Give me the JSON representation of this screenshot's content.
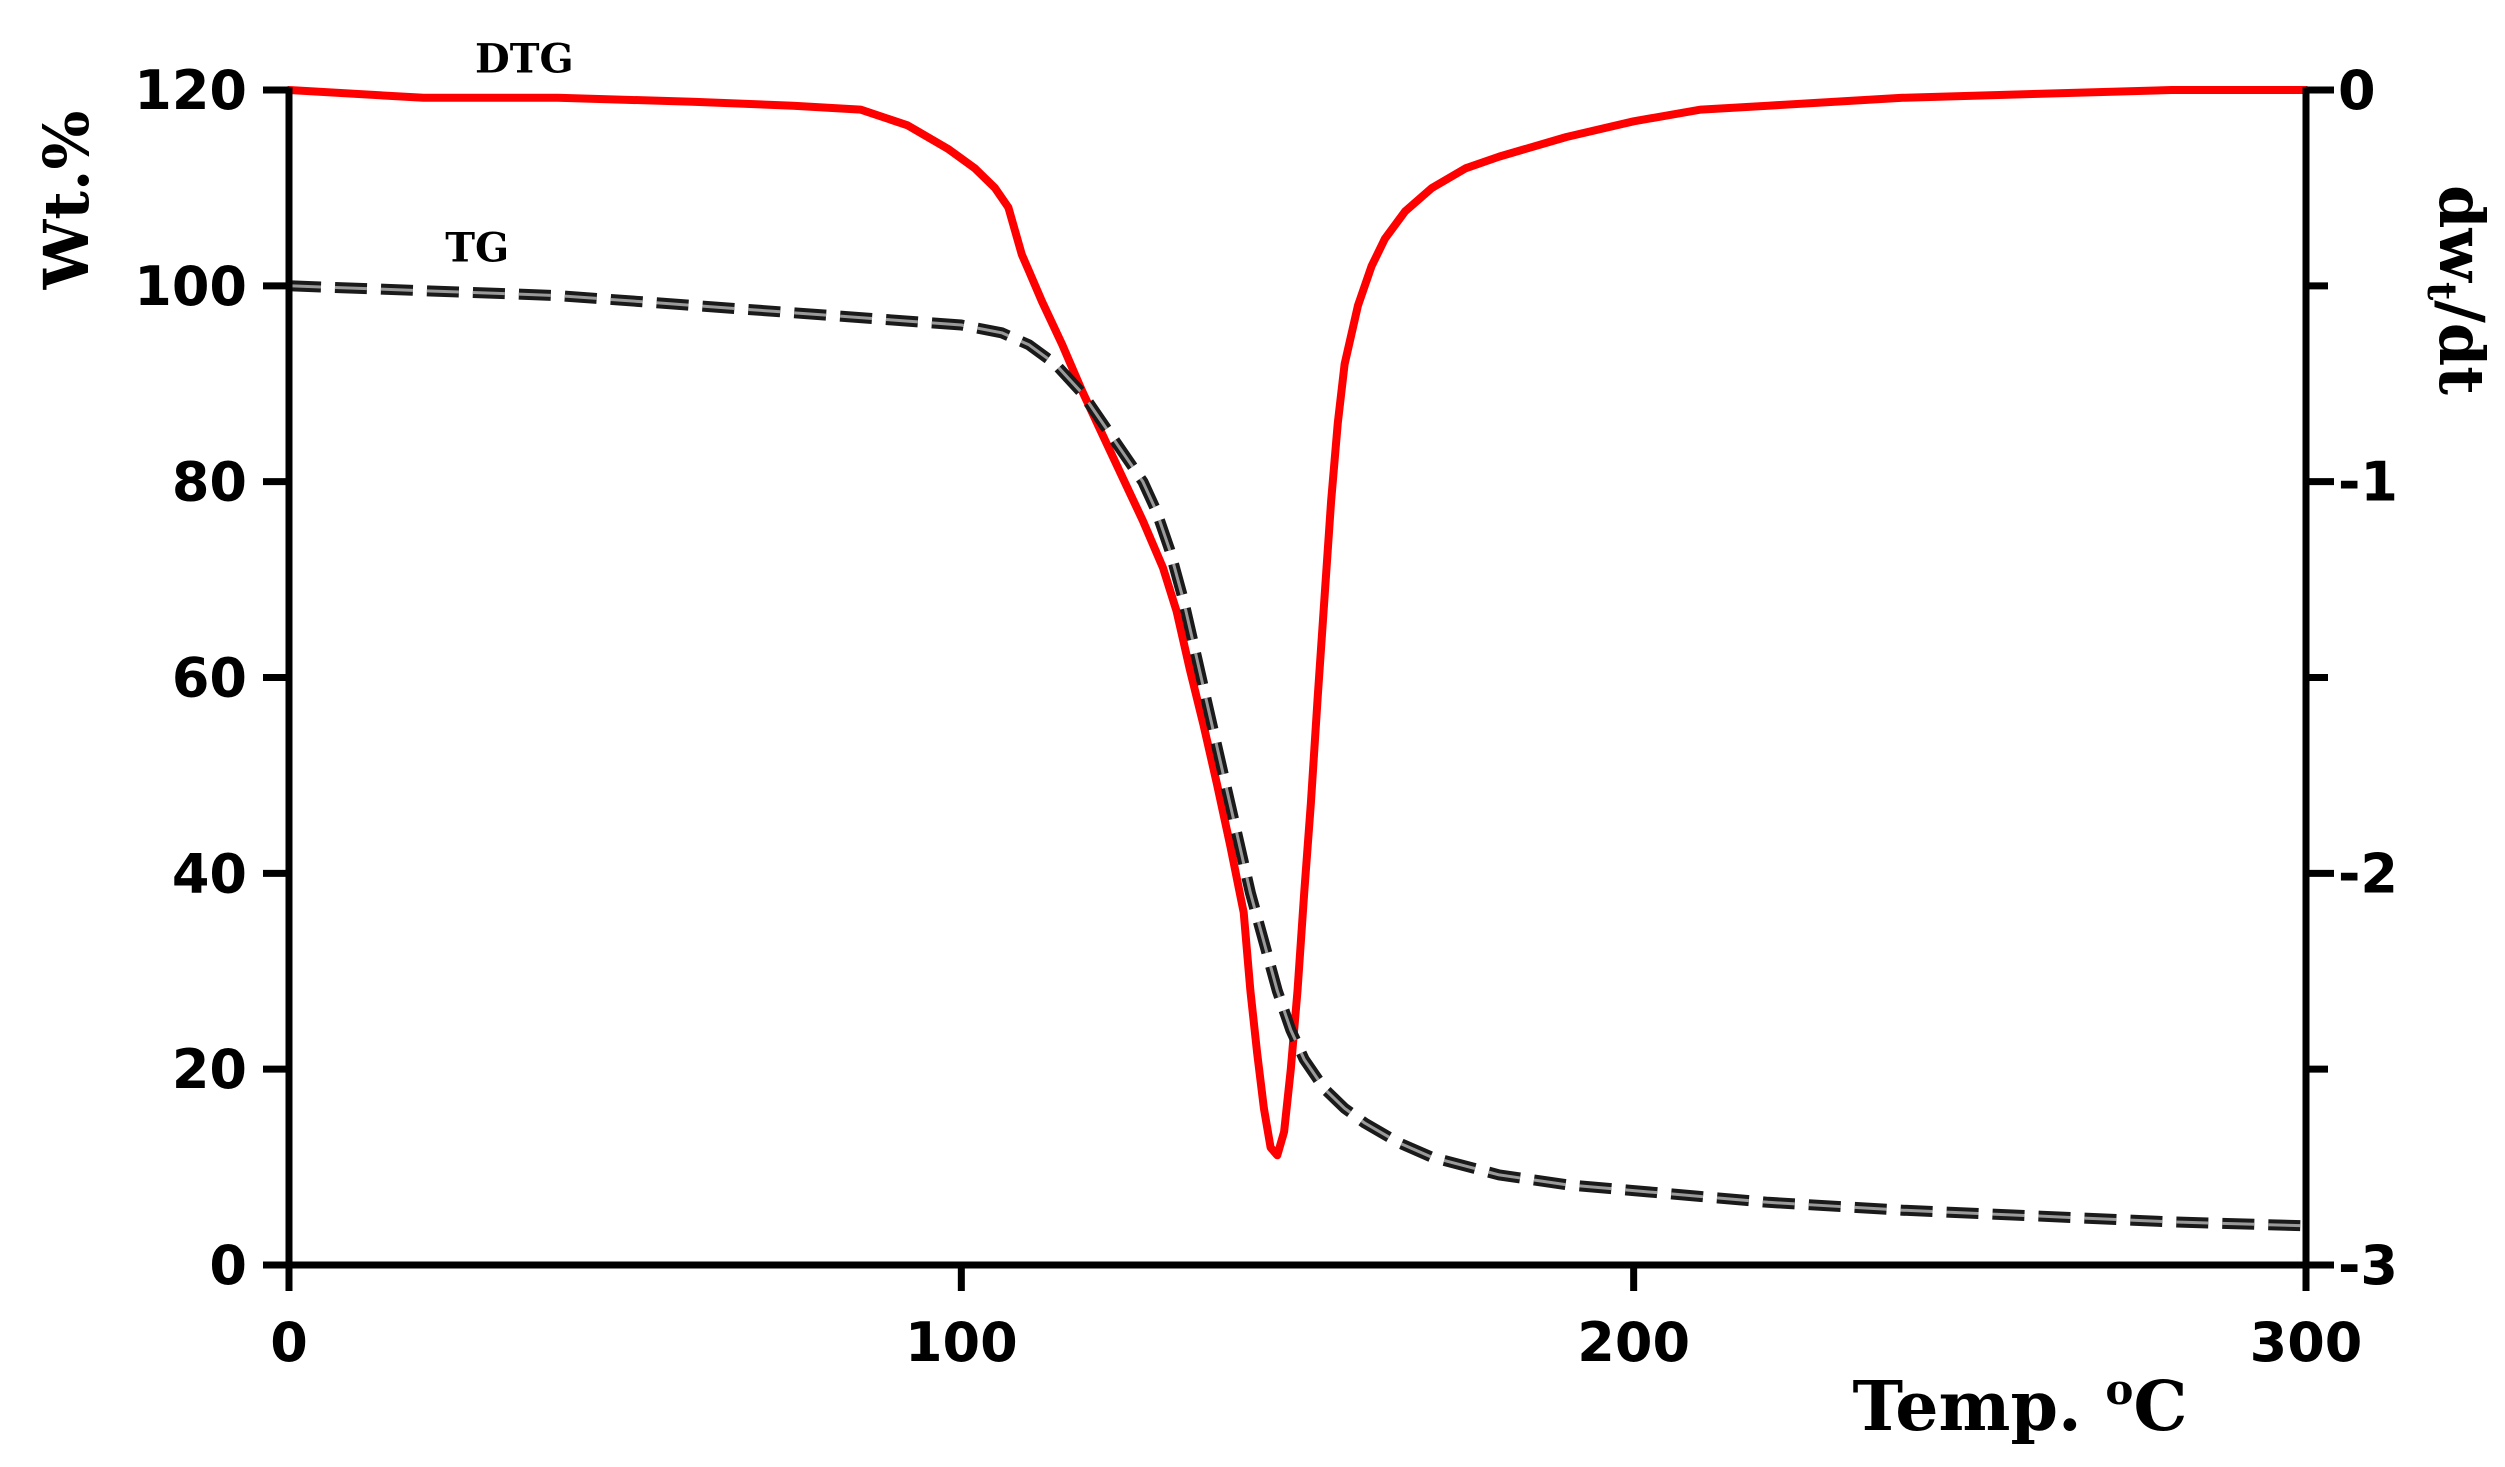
{
  "chart_data": {
    "type": "line",
    "title": "",
    "xlabel": "Temp. ",
    "xlabel_unit_sup": "o",
    "xlabel_unit": "C",
    "ylabel": "Wt.%",
    "y2label_main": "dw",
    "y2label_sub": "t",
    "y2label_end": "/dt",
    "xlim": [
      0,
      300
    ],
    "ylim": [
      0,
      120
    ],
    "y2lim": [
      -3,
      0
    ],
    "x_ticks": [
      "0",
      "100",
      "200",
      "300"
    ],
    "y_ticks": [
      "0",
      "20",
      "40",
      "60",
      "80",
      "100",
      "120"
    ],
    "y2_ticks": [
      "-3",
      "-2",
      "-1",
      "0"
    ],
    "grid": false,
    "colors": {
      "dtg": "#ff0000",
      "tg": "#1a1a1a",
      "tg_highlight": "#9a9a9a",
      "axis": "#000000"
    },
    "series": [
      {
        "name": "DTG",
        "axis": "right",
        "style": "solid",
        "label_at": [
          35,
          0.045
        ],
        "points": [
          [
            0,
            0.0
          ],
          [
            20,
            -0.02
          ],
          [
            40,
            -0.02
          ],
          [
            60,
            -0.03
          ],
          [
            75,
            -0.04
          ],
          [
            85,
            -0.05
          ],
          [
            92,
            -0.09
          ],
          [
            98,
            -0.15
          ],
          [
            102,
            -0.2
          ],
          [
            105,
            -0.25
          ],
          [
            107,
            -0.3
          ],
          [
            108,
            -0.36
          ],
          [
            109,
            -0.42
          ],
          [
            110,
            -0.46
          ],
          [
            112,
            -0.54
          ],
          [
            115,
            -0.65
          ],
          [
            118,
            -0.77
          ],
          [
            121,
            -0.88
          ],
          [
            124,
            -0.99
          ],
          [
            127,
            -1.1
          ],
          [
            130,
            -1.22
          ],
          [
            132,
            -1.33
          ],
          [
            134,
            -1.48
          ],
          [
            136,
            -1.62
          ],
          [
            138,
            -1.77
          ],
          [
            140,
            -1.93
          ],
          [
            142,
            -2.1
          ],
          [
            143,
            -2.3
          ],
          [
            144,
            -2.46
          ],
          [
            145,
            -2.6
          ],
          [
            146,
            -2.7
          ],
          [
            147,
            -2.72
          ],
          [
            148,
            -2.66
          ],
          [
            149,
            -2.5
          ],
          [
            150,
            -2.3
          ],
          [
            151,
            -2.05
          ],
          [
            152,
            -1.82
          ],
          [
            153,
            -1.55
          ],
          [
            154,
            -1.3
          ],
          [
            155,
            -1.05
          ],
          [
            156,
            -0.85
          ],
          [
            157,
            -0.7
          ],
          [
            159,
            -0.55
          ],
          [
            161,
            -0.45
          ],
          [
            163,
            -0.38
          ],
          [
            166,
            -0.31
          ],
          [
            170,
            -0.25
          ],
          [
            175,
            -0.2
          ],
          [
            180,
            -0.17
          ],
          [
            190,
            -0.12
          ],
          [
            200,
            -0.08
          ],
          [
            210,
            -0.05
          ],
          [
            220,
            -0.04
          ],
          [
            240,
            -0.02
          ],
          [
            260,
            -0.01
          ],
          [
            280,
            0.0
          ],
          [
            300,
            0.0
          ]
        ]
      },
      {
        "name": "TG",
        "axis": "left",
        "style": "dashed",
        "label_at": [
          28,
          102.5
        ],
        "points": [
          [
            0,
            100
          ],
          [
            20,
            99.5
          ],
          [
            40,
            99
          ],
          [
            60,
            98
          ],
          [
            80,
            97
          ],
          [
            100,
            96
          ],
          [
            106,
            95.2
          ],
          [
            110,
            94
          ],
          [
            114,
            92
          ],
          [
            118,
            89
          ],
          [
            121,
            86
          ],
          [
            124,
            83
          ],
          [
            127,
            80
          ],
          [
            129,
            77
          ],
          [
            131,
            73
          ],
          [
            133,
            68
          ],
          [
            135,
            62
          ],
          [
            137,
            56
          ],
          [
            139,
            50
          ],
          [
            141,
            44
          ],
          [
            143,
            38
          ],
          [
            145,
            33
          ],
          [
            147,
            28
          ],
          [
            149,
            24
          ],
          [
            151,
            21
          ],
          [
            154,
            18
          ],
          [
            157,
            16
          ],
          [
            160,
            14.5
          ],
          [
            165,
            12.5
          ],
          [
            170,
            11
          ],
          [
            180,
            9.2
          ],
          [
            190,
            8.2
          ],
          [
            200,
            7.6
          ],
          [
            210,
            7
          ],
          [
            220,
            6.4
          ],
          [
            240,
            5.6
          ],
          [
            260,
            5
          ],
          [
            280,
            4.4
          ],
          [
            300,
            4
          ]
        ]
      }
    ]
  }
}
